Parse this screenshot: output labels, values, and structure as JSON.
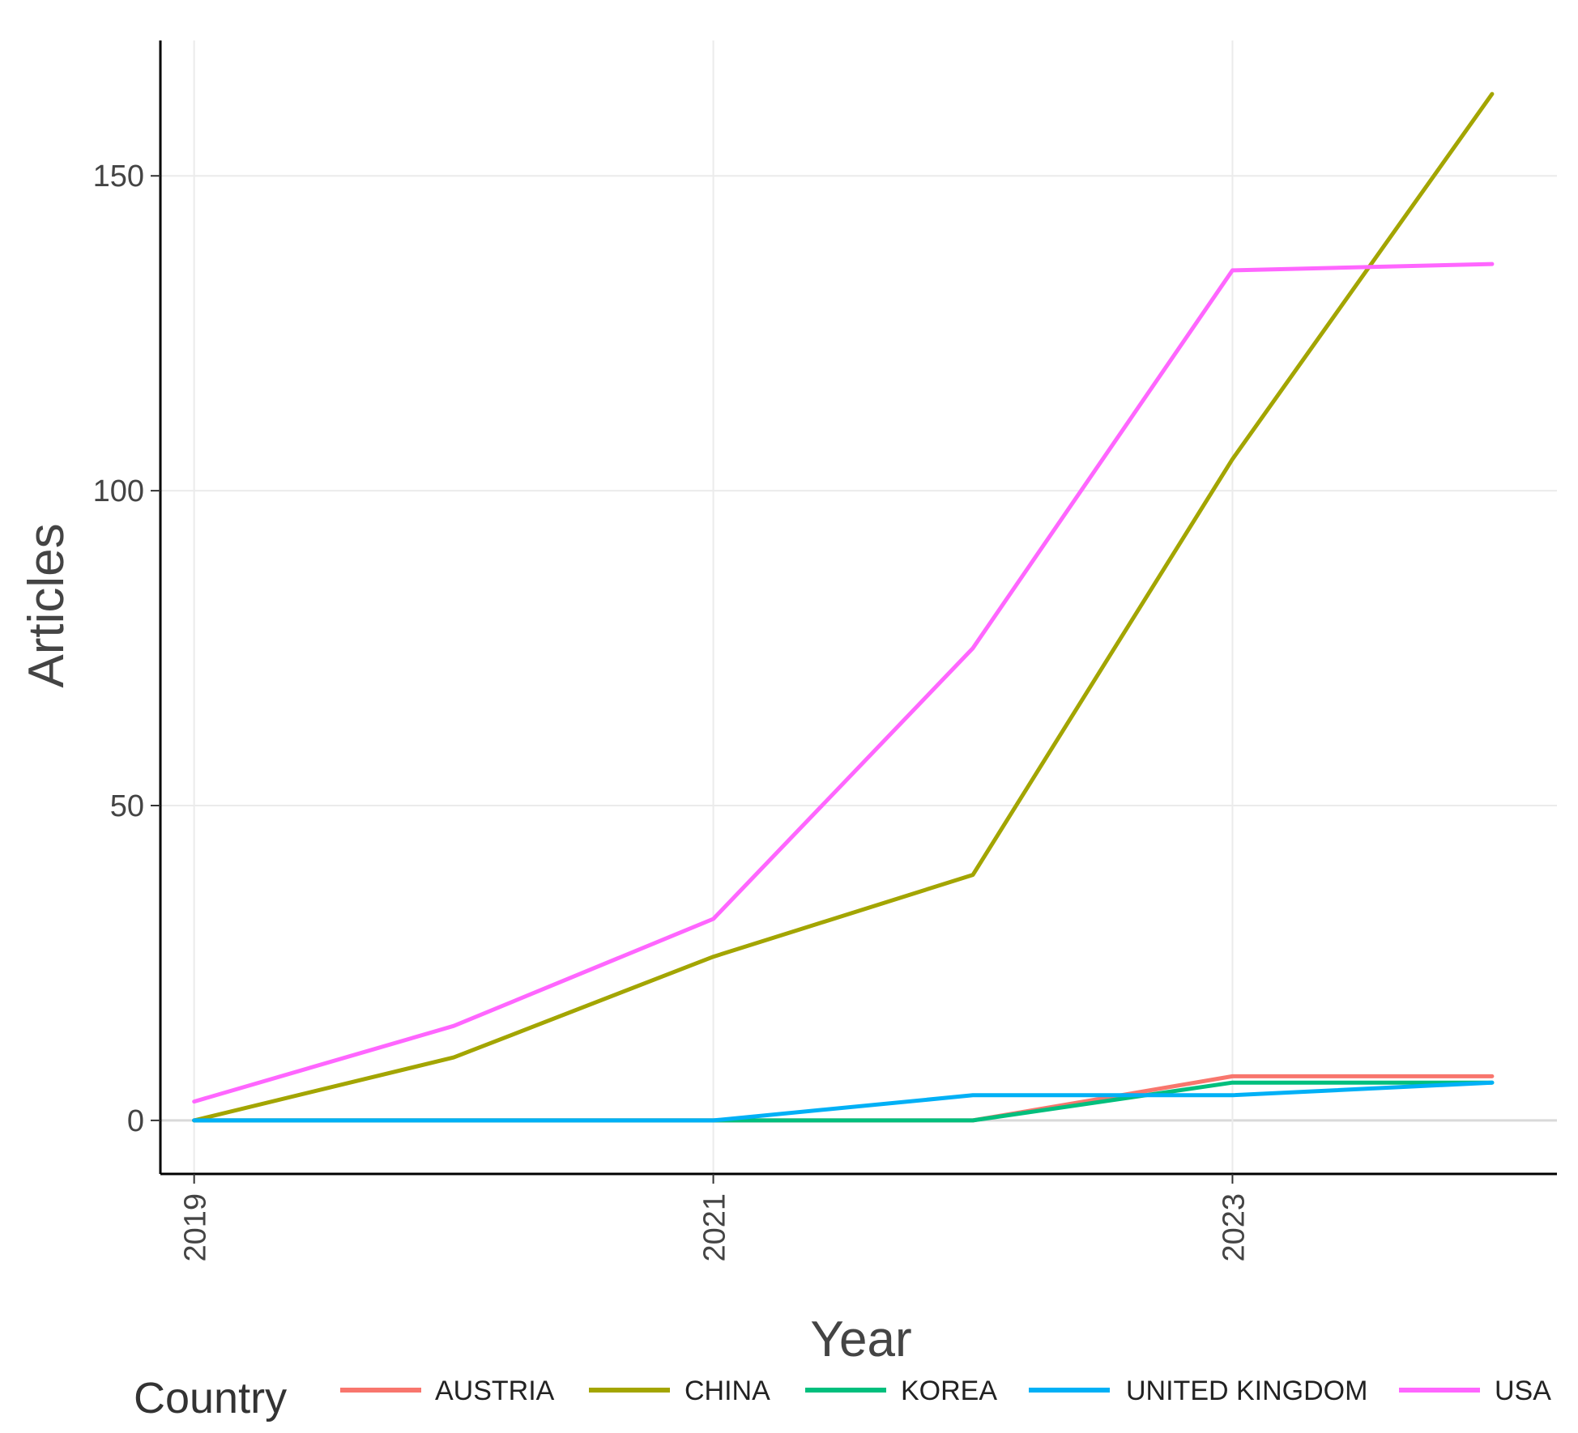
{
  "chart_data": {
    "type": "line",
    "xlabel": "Year",
    "ylabel": "Articles",
    "x": [
      2019,
      2020,
      2021,
      2022,
      2023,
      2024
    ],
    "xticks": [
      "2019",
      "2021",
      "2023"
    ],
    "yticks": [
      "0",
      "50",
      "100",
      "150"
    ],
    "xlim": [
      2018.87,
      2024.25
    ],
    "ylim": [
      -8.5,
      171.5
    ],
    "grid": true,
    "legend": {
      "title": "Country",
      "position": "bottom"
    },
    "series": [
      {
        "name": "AUSTRIA",
        "color": "#F8766D",
        "values": [
          0,
          0,
          0,
          0,
          7,
          7
        ]
      },
      {
        "name": "CHINA",
        "color": "#A3A500",
        "values": [
          0,
          10,
          26,
          39,
          105,
          163
        ]
      },
      {
        "name": "KOREA",
        "color": "#00BF7D",
        "values": [
          0,
          0,
          0,
          0,
          6,
          6
        ]
      },
      {
        "name": "UNITED KINGDOM",
        "color": "#00B0F6",
        "values": [
          0,
          0,
          0,
          4,
          4,
          6
        ]
      },
      {
        "name": "USA",
        "color": "#FF66FF",
        "values": [
          3,
          15,
          32,
          75,
          135,
          136
        ]
      }
    ]
  }
}
